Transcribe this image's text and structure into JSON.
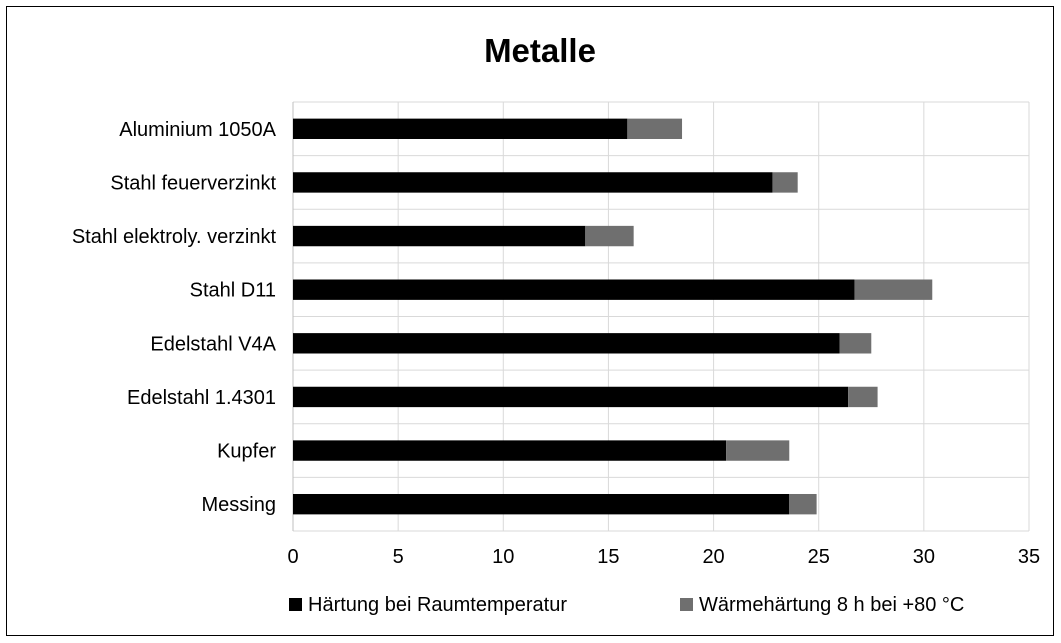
{
  "chart_data": {
    "type": "bar",
    "orientation": "horizontal",
    "stacked": true,
    "title": "Metalle",
    "xlabel": "",
    "ylabel": "",
    "categories": [
      "Aluminium 1050A",
      "Stahl feuerverzinkt",
      "Stahl elektroly. verzinkt",
      "Stahl D11",
      "Edelstahl V4A",
      "Edelstahl 1.4301",
      "Kupfer",
      "Messing"
    ],
    "series": [
      {
        "name": "Härtung bei Raumtemperatur",
        "color": "#000000",
        "values": [
          15.9,
          22.8,
          13.9,
          26.7,
          26.0,
          26.4,
          20.6,
          23.6
        ]
      },
      {
        "name": "Wärmehärtung 8 h bei +80 °C",
        "color": "#6f6f6f",
        "values": [
          2.6,
          1.2,
          2.3,
          3.7,
          1.5,
          1.4,
          3.0,
          1.3
        ]
      }
    ],
    "xlim": [
      0,
      35
    ],
    "xticks": [
      "0",
      "5",
      "10",
      "15",
      "20",
      "25",
      "30",
      "35"
    ],
    "grid": true,
    "legend_position": "bottom"
  }
}
